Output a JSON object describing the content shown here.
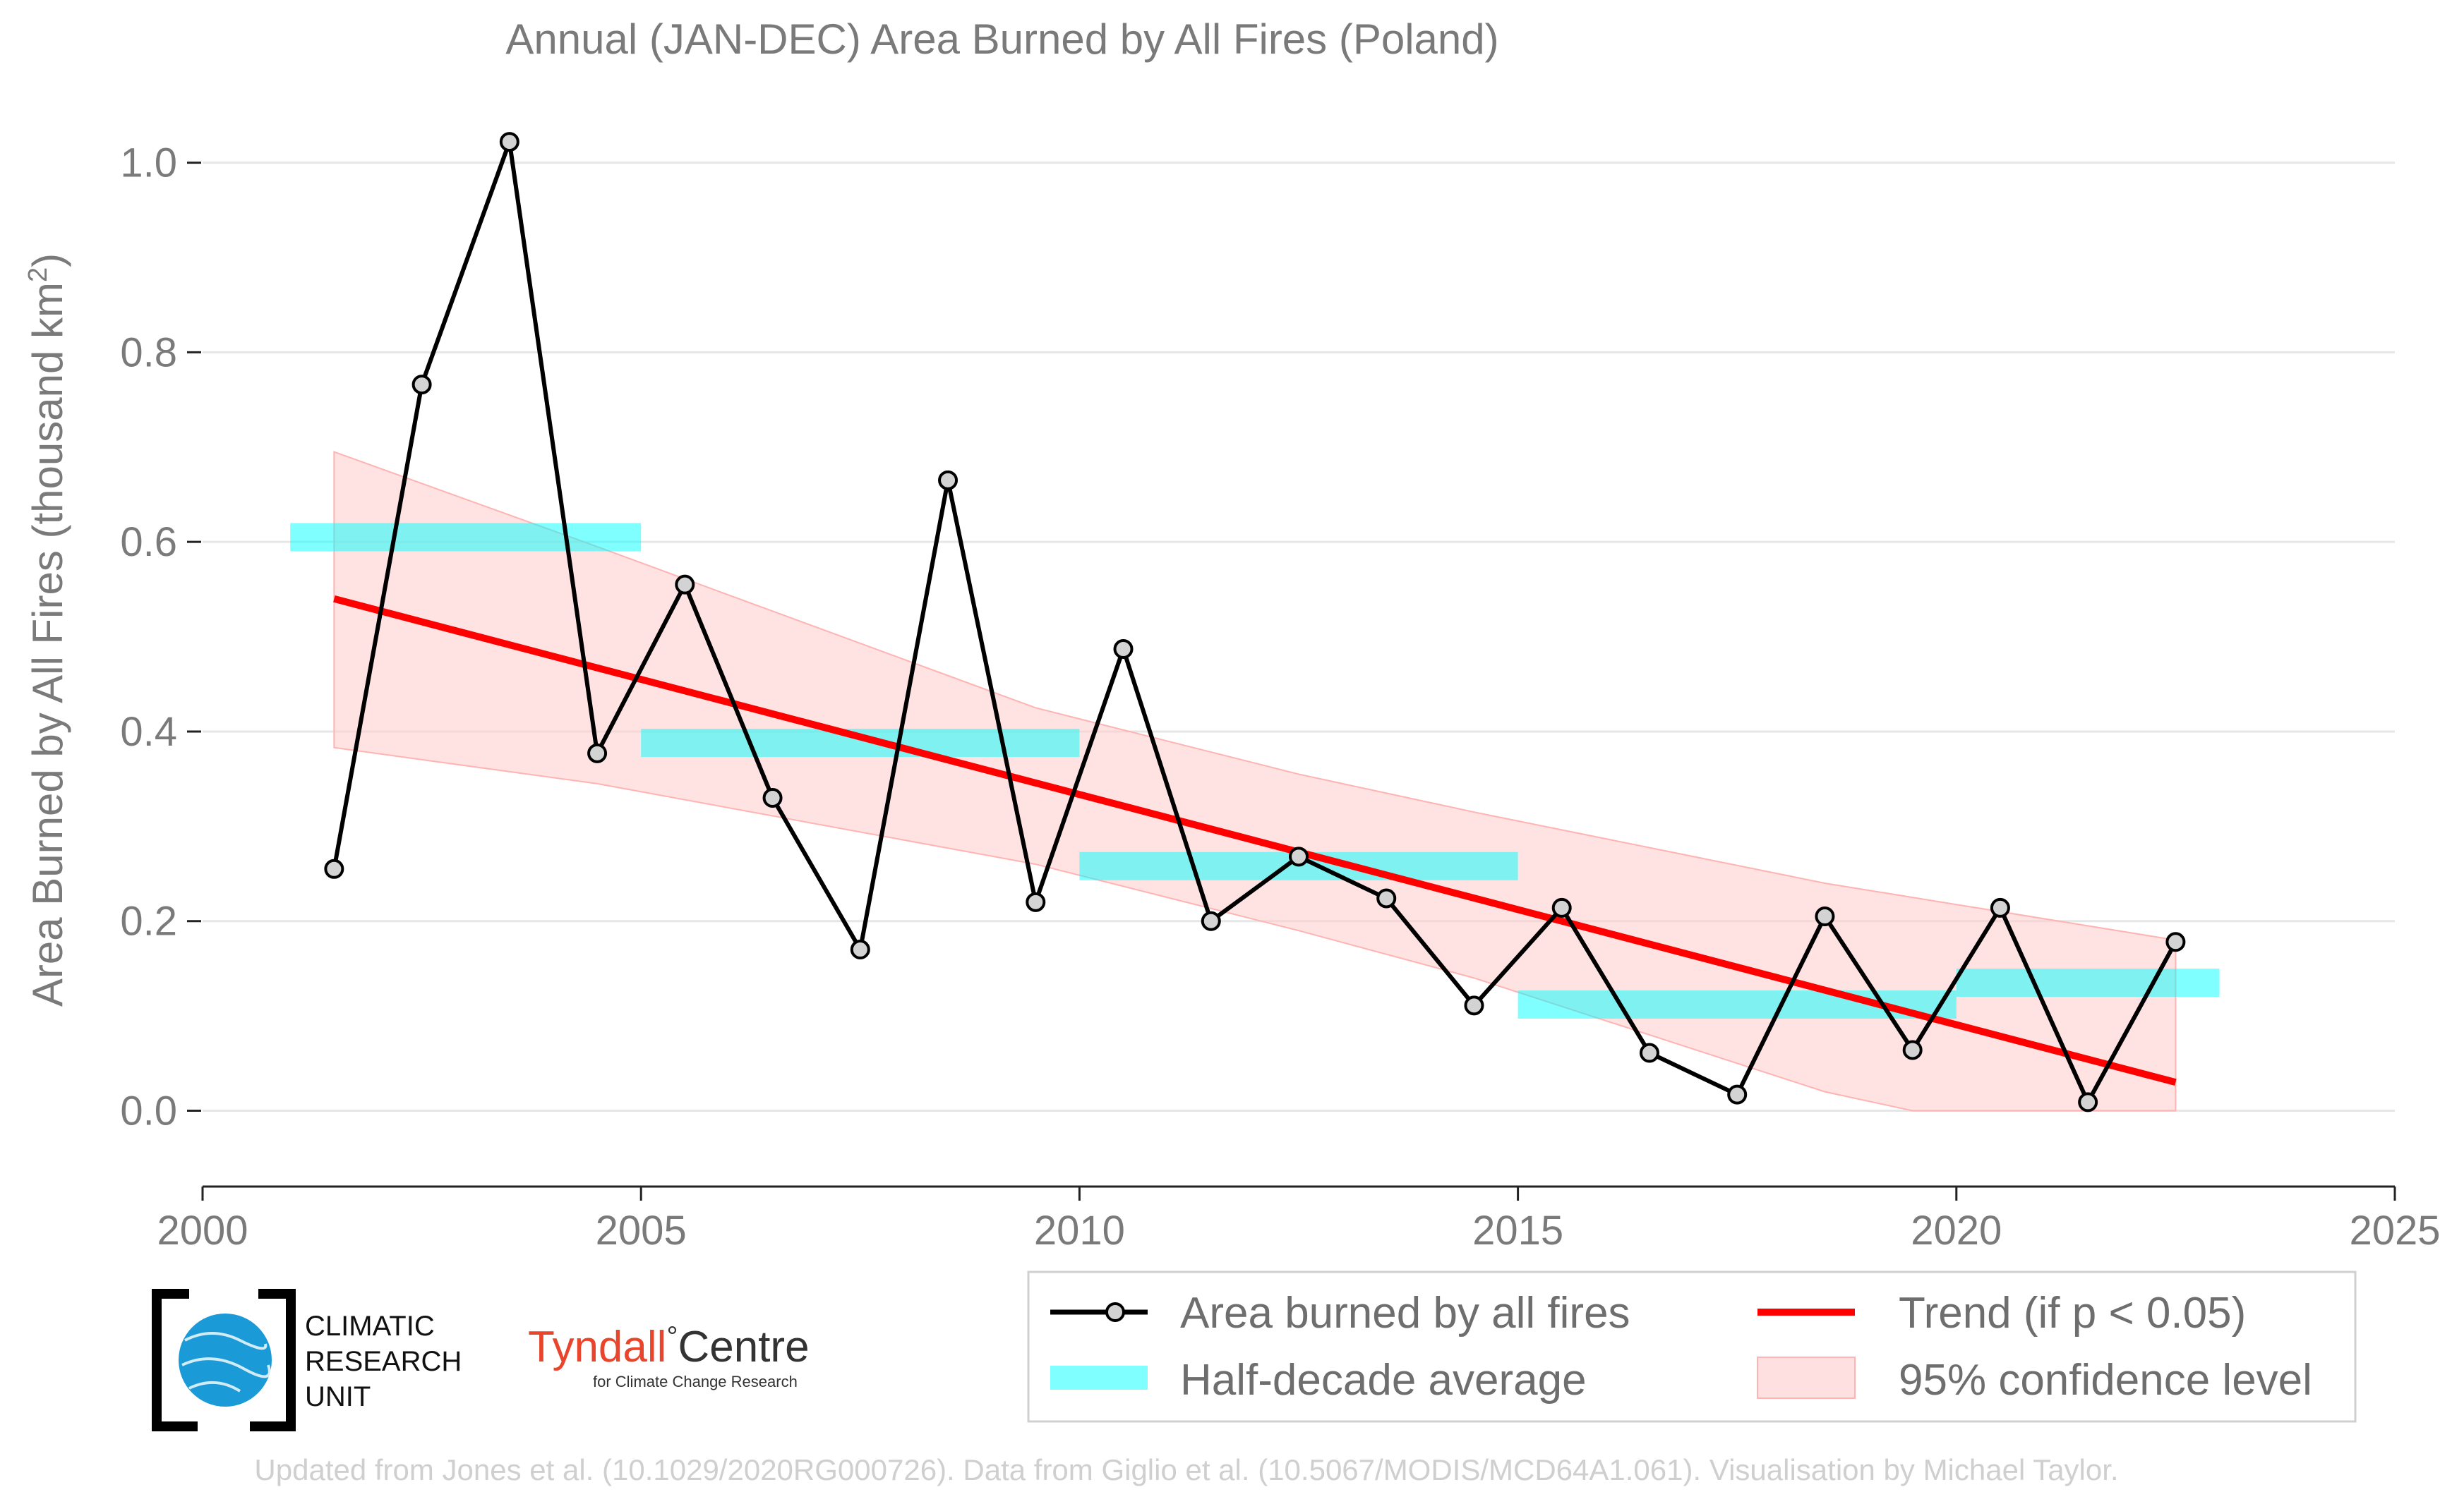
{
  "chart_data": {
    "type": "line",
    "title": "Annual (JAN-DEC) Area Burned by All Fires (Poland)",
    "ylabel_prefix": "Area Burned by All Fires (thousand km",
    "ylabel_sup": "2",
    "ylabel_suffix": ")",
    "xlim": [
      2000,
      2025
    ],
    "ylim": [
      -0.08,
      1.06
    ],
    "x_ticks": [
      2000,
      2005,
      2010,
      2015,
      2020,
      2025
    ],
    "y_ticks": [
      0.0,
      0.2,
      0.4,
      0.6,
      0.8,
      1.0
    ],
    "y_tick_labels": [
      "0.0",
      "0.2",
      "0.4",
      "0.6",
      "0.8",
      "1.0"
    ],
    "grid": "horizontal",
    "series": [
      {
        "name": "Area burned by all fires",
        "color": "#000000",
        "x": [
          2001.5,
          2002.5,
          2003.5,
          2004.5,
          2005.5,
          2006.5,
          2007.5,
          2008.5,
          2009.5,
          2010.5,
          2011.5,
          2012.5,
          2013.5,
          2014.5,
          2015.5,
          2016.5,
          2017.5,
          2018.5,
          2019.5,
          2020.5,
          2021.5,
          2022.5
        ],
        "y": [
          0.255,
          0.766,
          1.022,
          0.377,
          0.555,
          0.33,
          0.17,
          0.665,
          0.22,
          0.487,
          0.2,
          0.268,
          0.224,
          0.111,
          0.214,
          0.061,
          0.017,
          0.205,
          0.064,
          0.214,
          0.009,
          0.178
        ]
      },
      {
        "name": "Half-decade average",
        "color": "#00ffff",
        "segments": [
          {
            "x0": 2001,
            "x1": 2005,
            "y": 0.605
          },
          {
            "x0": 2005,
            "x1": 2010,
            "y": 0.388
          },
          {
            "x0": 2010,
            "x1": 2015,
            "y": 0.258
          },
          {
            "x0": 2015,
            "x1": 2020,
            "y": 0.112
          },
          {
            "x0": 2020,
            "x1": 2023,
            "y": 0.135
          }
        ]
      },
      {
        "name": "Trend (if p < 0.05)",
        "color": "#ff0000",
        "x": [
          2001.5,
          2022.5
        ],
        "y": [
          0.54,
          0.03
        ]
      },
      {
        "name": "95% confidence level",
        "color": "#ffcccc",
        "x": [
          2001.5,
          2004.5,
          2009.5,
          2012.5,
          2014.5,
          2018.5,
          2019.5,
          2022.5
        ],
        "upper": [
          0.695,
          0.595,
          0.425,
          0.355,
          0.315,
          0.24,
          0.225,
          0.18
        ],
        "lower": [
          0.383,
          0.345,
          0.26,
          0.19,
          0.14,
          0.02,
          0.0,
          0.0
        ]
      }
    ],
    "legend_position": "bottom-right"
  },
  "legend": {
    "line": "Area burned by all fires",
    "half_decade": "Half-decade average",
    "trend": "Trend (if p < 0.05)",
    "confidence": "95% confidence level"
  },
  "logos": {
    "cru_line1": "CLIMATIC",
    "cru_line2": "RESEARCH",
    "cru_line3": "UNIT",
    "tyndall_main": "Tyndall",
    "tyndall_degree": "°",
    "tyndall_centre": "Centre",
    "tyndall_sub": "for Climate Change Research"
  },
  "footer": "Updated from Jones et al. (10.1029/2020RG000726). Data from Giglio et al. (10.5067/MODIS/MCD64A1.061). Visualisation by Michael Taylor."
}
